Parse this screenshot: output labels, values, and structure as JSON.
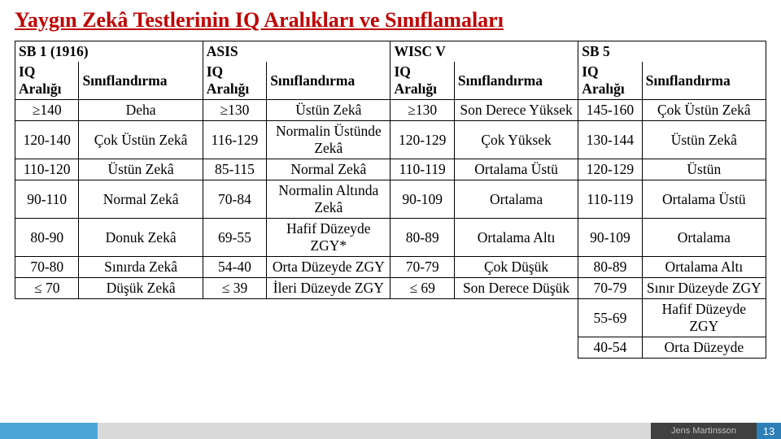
{
  "title": "Yaygın Zekâ Testlerinin IQ Aralıkları ve Sınıflamaları",
  "tests": {
    "sb1": {
      "name": "SB 1 (1916)",
      "iq_hdr": "IQ Aralığı",
      "cls_hdr": "Sınıflandırma"
    },
    "asis": {
      "name": "ASIS",
      "iq_hdr": "IQ Aralığı",
      "cls_hdr": "Sınıflandırma"
    },
    "wisc": {
      "name": "WISC V",
      "iq_hdr": "IQ Aralığı",
      "cls_hdr": "Sınıflandırma"
    },
    "sb5": {
      "name": "SB 5",
      "iq_hdr": "IQ Aralığı",
      "cls_hdr": "Sınıflandırma"
    }
  },
  "rows": [
    {
      "sb1_iq": "≥140",
      "sb1_cls": "Deha",
      "asis_iq": "≥130",
      "asis_cls": "Üstün Zekâ",
      "wisc_iq": "≥130",
      "wisc_cls": "Son Derece Yüksek",
      "sb5_iq": "145-160",
      "sb5_cls": "Çok Üstün Zekâ"
    },
    {
      "sb1_iq": "120-140",
      "sb1_cls": "Çok Üstün Zekâ",
      "asis_iq": "116-129",
      "asis_cls": "Normalin Üstünde Zekâ",
      "wisc_iq": "120-129",
      "wisc_cls": "Çok Yüksek",
      "sb5_iq": "130-144",
      "sb5_cls": "Üstün Zekâ"
    },
    {
      "sb1_iq": "110-120",
      "sb1_cls": "Üstün Zekâ",
      "asis_iq": "85-115",
      "asis_cls": "Normal Zekâ",
      "wisc_iq": "110-119",
      "wisc_cls": "Ortalama Üstü",
      "sb5_iq": "120-129",
      "sb5_cls": "Üstün"
    },
    {
      "sb1_iq": "90-110",
      "sb1_cls": "Normal Zekâ",
      "asis_iq": "70-84",
      "asis_cls": "Normalin Altında Zekâ",
      "wisc_iq": "90-109",
      "wisc_cls": "Ortalama",
      "sb5_iq": "110-119",
      "sb5_cls": "Ortalama Üstü"
    },
    {
      "sb1_iq": "80-90",
      "sb1_cls": "Donuk Zekâ",
      "asis_iq": "69-55",
      "asis_cls": "Hafif Düzeyde ZGY*",
      "wisc_iq": "80-89",
      "wisc_cls": "Ortalama Altı",
      "sb5_iq": "90-109",
      "sb5_cls": "Ortalama"
    },
    {
      "sb1_iq": "70-80",
      "sb1_cls": "Sınırda Zekâ",
      "asis_iq": "54-40",
      "asis_cls": "Orta Düzeyde ZGY",
      "wisc_iq": "70-79",
      "wisc_cls": "Çok Düşük",
      "sb5_iq": "80-89",
      "sb5_cls": "Ortalama Altı"
    },
    {
      "sb1_iq": "≤ 70",
      "sb1_cls": "Düşük Zekâ",
      "asis_iq": "≤ 39",
      "asis_cls": "İleri Düzeyde ZGY",
      "wisc_iq": "≤ 69",
      "wisc_cls": "Son Derece Düşük",
      "sb5_iq": "70-79",
      "sb5_cls": "Sınır Düzeyde ZGY"
    },
    {
      "sb1_iq": "",
      "sb1_cls": "",
      "asis_iq": "",
      "asis_cls": "",
      "wisc_iq": "",
      "wisc_cls": "",
      "sb5_iq": "55-69",
      "sb5_cls": "Hafif Düzeyde ZGY"
    },
    {
      "sb1_iq": "",
      "sb1_cls": "",
      "asis_iq": "",
      "asis_cls": "",
      "wisc_iq": "",
      "wisc_cls": "",
      "sb5_iq": "40-54",
      "sb5_cls": "Orta Düzeyde"
    }
  ],
  "footer": {
    "author": "Jens Martinsson",
    "page": "13"
  },
  "colors": {
    "title": "#c00000",
    "border": "#000000"
  }
}
